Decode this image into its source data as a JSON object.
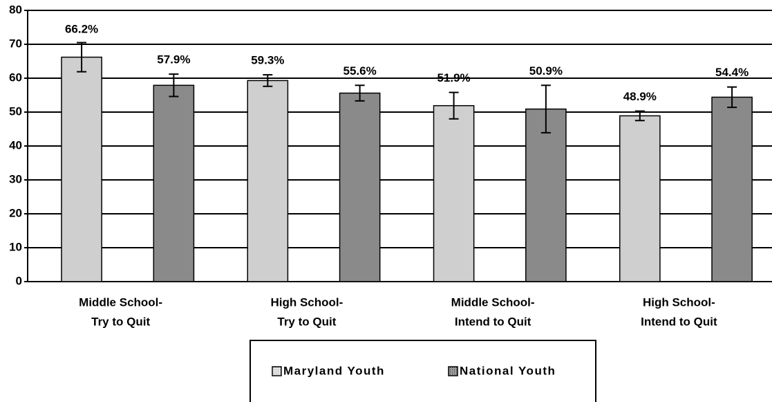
{
  "chart_data": {
    "type": "bar",
    "categories": [
      [
        "Middle School-",
        "Try to Quit"
      ],
      [
        "High School-",
        "Try to Quit"
      ],
      [
        "Middle School-",
        "Intend to Quit"
      ],
      [
        "High School-",
        "Intend to Quit"
      ]
    ],
    "series": [
      {
        "name": "Maryland Youth",
        "color": "#cfcfcf",
        "values": [
          66.2,
          59.3,
          51.9,
          48.9
        ],
        "value_labels": [
          "66.2%",
          "59.3%",
          "51.9%",
          "48.9%"
        ],
        "errors": [
          4.3,
          1.7,
          3.9,
          1.4
        ]
      },
      {
        "name": "National Youth",
        "color": "#8a8a8a",
        "values": [
          57.9,
          55.6,
          50.9,
          54.4
        ],
        "value_labels": [
          "57.9%",
          "55.6%",
          "50.9%",
          "54.4%"
        ],
        "errors": [
          3.3,
          2.3,
          7,
          3
        ]
      }
    ],
    "ylim": [
      0,
      80
    ],
    "yticks": [
      0,
      10,
      20,
      30,
      40,
      50,
      60,
      70,
      80
    ],
    "grid": true,
    "legend": "bottom"
  }
}
